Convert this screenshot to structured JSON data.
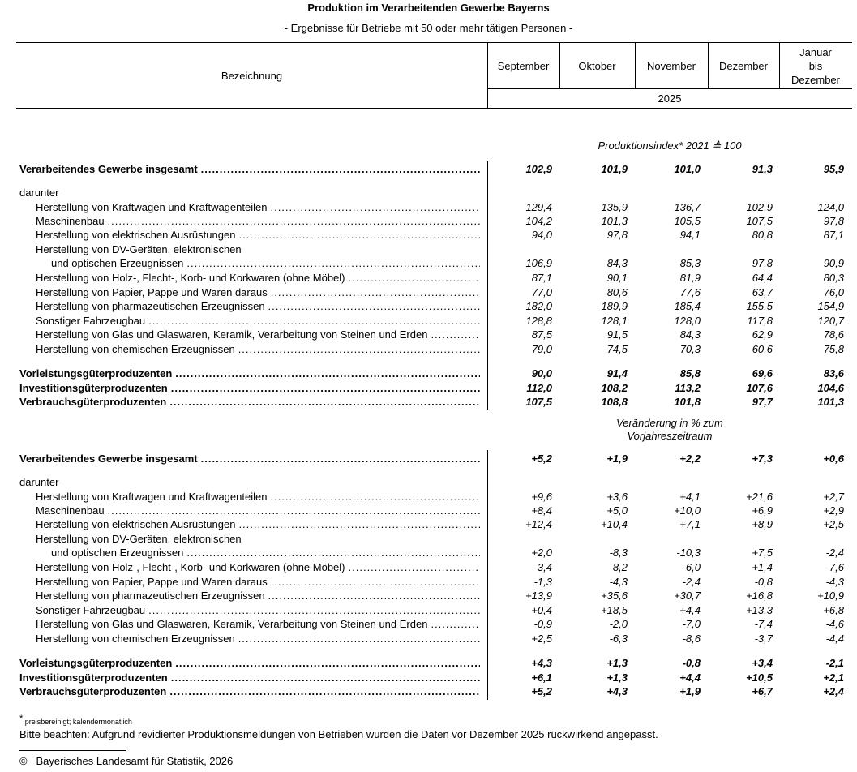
{
  "title": "Produktion im Verarbeitenden Gewerbe Bayerns",
  "subtitle": "- Ergebnisse für Betriebe mit 50 oder mehr tätigen Personen -",
  "header": {
    "label_col": "Bezeichnung",
    "months": [
      "September",
      "Oktober",
      "November",
      "Dezember"
    ],
    "cumulative": [
      "Januar",
      "bis",
      "Dezember"
    ],
    "year": "2025"
  },
  "sections": [
    {
      "heading": [
        "Produktionsindex* 2021 ≙ 100"
      ],
      "rows": [
        {
          "label": "Verarbeitendes Gewerbe insgesamt",
          "bold": true,
          "values": [
            "102,9",
            "101,9",
            "101,0",
            "91,3",
            "95,9"
          ]
        },
        {
          "label": "darunter",
          "values": []
        },
        {
          "label": "Herstellung von Kraftwagen und Kraftwagenteilen",
          "indent": 1,
          "values": [
            "129,4",
            "135,9",
            "136,7",
            "102,9",
            "124,0"
          ]
        },
        {
          "label": "Maschinenbau",
          "indent": 1,
          "values": [
            "104,2",
            "101,3",
            "105,5",
            "107,5",
            "97,8"
          ]
        },
        {
          "label": "Herstellung von elektrischen Ausrüstungen",
          "indent": 1,
          "values": [
            "94,0",
            "97,8",
            "94,1",
            "80,8",
            "87,1"
          ]
        },
        {
          "label": "Herstellung von DV-Geräten, elektronischen",
          "indent": 1,
          "cont": "und optischen Erzeugnissen",
          "values": [
            "106,9",
            "84,3",
            "85,3",
            "97,8",
            "90,9"
          ]
        },
        {
          "label": "Herstellung von Holz-, Flecht-, Korb- und Korkwaren (ohne Möbel)",
          "indent": 1,
          "values": [
            "87,1",
            "90,1",
            "81,9",
            "64,4",
            "80,3"
          ]
        },
        {
          "label": "Herstellung von Papier, Pappe und Waren daraus",
          "indent": 1,
          "values": [
            "77,0",
            "80,6",
            "77,6",
            "63,7",
            "76,0"
          ]
        },
        {
          "label": "Herstellung von pharmazeutischen Erzeugnissen",
          "indent": 1,
          "values": [
            "182,0",
            "189,9",
            "185,4",
            "155,5",
            "154,9"
          ]
        },
        {
          "label": "Sonstiger Fahrzeugbau",
          "indent": 1,
          "values": [
            "128,8",
            "128,1",
            "128,0",
            "117,8",
            "120,7"
          ]
        },
        {
          "label": "Herstellung von Glas und Glaswaren, Keramik, Verarbeitung von Steinen und Erden",
          "indent": 1,
          "values": [
            "87,5",
            "91,5",
            "84,3",
            "62,9",
            "78,6"
          ]
        },
        {
          "label": "Herstellung von chemischen Erzeugnissen",
          "indent": 1,
          "values": [
            "79,0",
            "74,5",
            "70,3",
            "60,6",
            "75,8"
          ]
        },
        {
          "label": "Vorleistungsgüterproduzenten",
          "bold": true,
          "values": [
            "90,0",
            "91,4",
            "85,8",
            "69,6",
            "83,6"
          ]
        },
        {
          "label": "Investitionsgüterproduzenten",
          "bold": true,
          "values": [
            "112,0",
            "108,2",
            "113,2",
            "107,6",
            "104,6"
          ]
        },
        {
          "label": "Verbrauchsgüterproduzenten",
          "bold": true,
          "values": [
            "107,5",
            "108,8",
            "101,8",
            "97,7",
            "101,3"
          ]
        }
      ]
    },
    {
      "heading": [
        "Veränderung in % zum",
        "Vorjahreszeitraum"
      ],
      "rows": [
        {
          "label": "Verarbeitendes Gewerbe insgesamt",
          "bold": true,
          "values": [
            "+5,2",
            "+1,9",
            "+2,2",
            "+7,3",
            "+0,6"
          ]
        },
        {
          "label": "darunter",
          "values": []
        },
        {
          "label": "Herstellung von Kraftwagen und Kraftwagenteilen",
          "indent": 1,
          "values": [
            "+9,6",
            "+3,6",
            "+4,1",
            "+21,6",
            "+2,7"
          ]
        },
        {
          "label": "Maschinenbau",
          "indent": 1,
          "values": [
            "+8,4",
            "+5,0",
            "+10,0",
            "+6,9",
            "+2,9"
          ]
        },
        {
          "label": "Herstellung von elektrischen Ausrüstungen",
          "indent": 1,
          "values": [
            "+12,4",
            "+10,4",
            "+7,1",
            "+8,9",
            "+2,5"
          ]
        },
        {
          "label": "Herstellung von DV-Geräten, elektronischen",
          "indent": 1,
          "cont": "und optischen Erzeugnissen",
          "values": [
            "+2,0",
            "-8,3",
            "-10,3",
            "+7,5",
            "-2,4"
          ]
        },
        {
          "label": "Herstellung von Holz-, Flecht-, Korb- und Korkwaren (ohne Möbel)",
          "indent": 1,
          "values": [
            "-3,4",
            "-8,2",
            "-6,0",
            "+1,4",
            "-7,6"
          ]
        },
        {
          "label": "Herstellung von Papier, Pappe und Waren daraus",
          "indent": 1,
          "values": [
            "-1,3",
            "-4,3",
            "-2,4",
            "-0,8",
            "-4,3"
          ]
        },
        {
          "label": "Herstellung von pharmazeutischen Erzeugnissen",
          "indent": 1,
          "values": [
            "+13,9",
            "+35,6",
            "+30,7",
            "+16,8",
            "+10,9"
          ]
        },
        {
          "label": "Sonstiger Fahrzeugbau",
          "indent": 1,
          "values": [
            "+0,4",
            "+18,5",
            "+4,4",
            "+13,3",
            "+6,8"
          ]
        },
        {
          "label": "Herstellung von Glas und Glaswaren, Keramik, Verarbeitung von Steinen und Erden",
          "indent": 1,
          "values": [
            "-0,9",
            "-2,0",
            "-7,0",
            "-7,4",
            "-4,6"
          ]
        },
        {
          "label": "Herstellung von chemischen Erzeugnissen",
          "indent": 1,
          "values": [
            "+2,5",
            "-6,3",
            "-8,6",
            "-3,7",
            "-4,4"
          ]
        },
        {
          "label": "Vorleistungsgüterproduzenten",
          "bold": true,
          "values": [
            "+4,3",
            "+1,3",
            "-0,8",
            "+3,4",
            "-2,1"
          ]
        },
        {
          "label": "Investitionsgüterproduzenten",
          "bold": true,
          "values": [
            "+6,1",
            "+1,3",
            "+4,4",
            "+10,5",
            "+2,1"
          ]
        },
        {
          "label": "Verbrauchsgüterproduzenten",
          "bold": true,
          "values": [
            "+5,2",
            "+4,3",
            "+1,9",
            "+6,7",
            "+2,4"
          ]
        }
      ]
    }
  ],
  "footnote": {
    "mark": "*",
    "text": "preisbereinigt; kalendermonatlich"
  },
  "notice": "Bitte beachten: Aufgrund revidierter Produktionsmeldungen von Betrieben wurden die Daten vor Dezember 2025 rückwirkend angepasst.",
  "copyright": {
    "symbol": "©",
    "text": "Bayerisches Landesamt für Statistik, 2026"
  }
}
